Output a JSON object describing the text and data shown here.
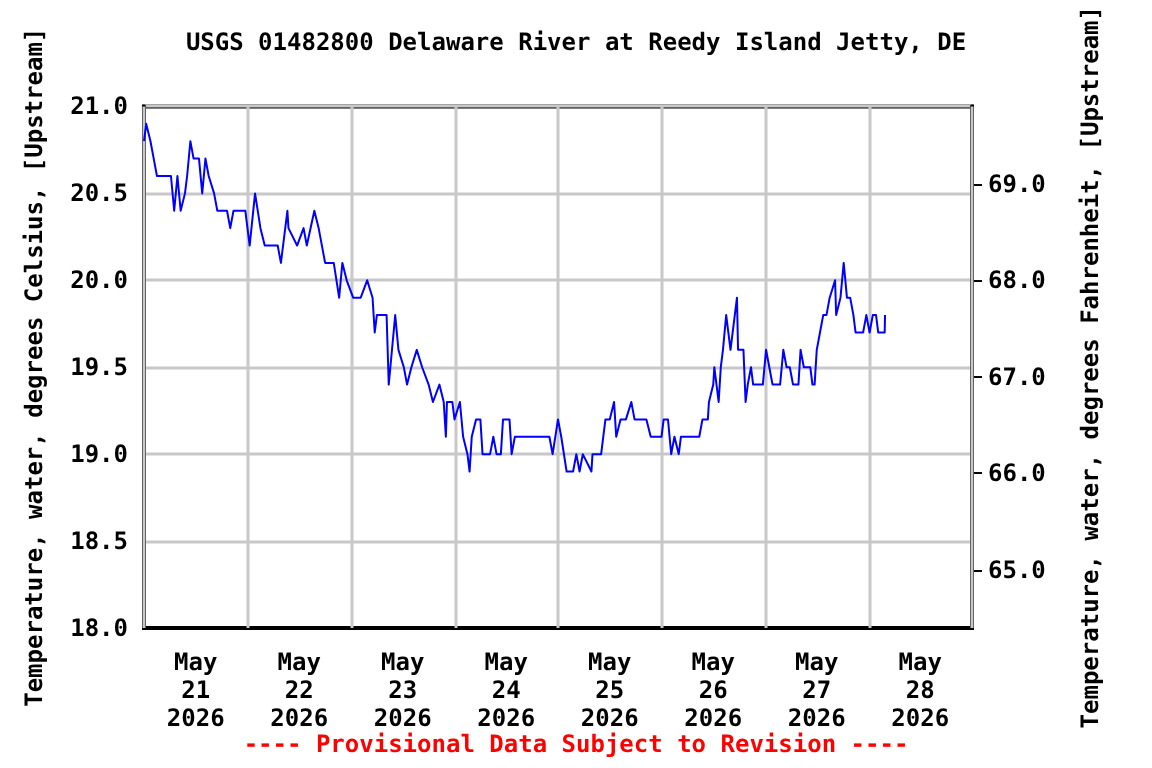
{
  "chart_data": {
    "type": "line",
    "title": "USGS 01482800 Delaware River at Reedy Island Jetty, DE",
    "ylabel": "Temperature, water, degrees Celsius, [Upstream]",
    "y2label": "Temperature, water, degrees Fahrenheit, [Upstream]",
    "annotations": [
      "---- Provisional Data Subject to Revision ----"
    ],
    "xlim": [
      "2026-05-21T00:00",
      "2026-05-29T00:00"
    ],
    "xticks": [
      {
        "value": "2026-05-21T00:00",
        "label": null
      },
      {
        "value": "2026-05-21T12:00",
        "label": "May\n21\n2026"
      },
      {
        "value": "2026-05-22T00:00",
        "label": null
      },
      {
        "value": "2026-05-22T12:00",
        "label": "May\n22\n2026"
      },
      {
        "value": "2026-05-23T00:00",
        "label": null
      },
      {
        "value": "2026-05-23T12:00",
        "label": "May\n23\n2026"
      },
      {
        "value": "2026-05-24T00:00",
        "label": null
      },
      {
        "value": "2026-05-24T12:00",
        "label": "May\n24\n2026"
      },
      {
        "value": "2026-05-25T00:00",
        "label": null
      },
      {
        "value": "2026-05-25T12:00",
        "label": "May\n25\n2026"
      },
      {
        "value": "2026-05-26T00:00",
        "label": null
      },
      {
        "value": "2026-05-26T12:00",
        "label": "May\n26\n2026"
      },
      {
        "value": "2026-05-27T00:00",
        "label": null
      },
      {
        "value": "2026-05-27T12:00",
        "label": "May\n27\n2026"
      },
      {
        "value": "2026-05-28T00:00",
        "label": null
      },
      {
        "value": "2026-05-28T12:00",
        "label": "May\n28\n2026"
      },
      {
        "value": "2026-05-29T00:00",
        "label": null
      }
    ],
    "ylim": [
      18,
      21
    ],
    "yticks": [
      {
        "value": 18,
        "label": "18.0"
      },
      {
        "value": 18.5,
        "label": "18.5"
      },
      {
        "value": 19,
        "label": "19.0"
      },
      {
        "value": 19.5,
        "label": "19.5"
      },
      {
        "value": 20,
        "label": "20.0"
      },
      {
        "value": 20.5,
        "label": "20.5"
      },
      {
        "value": 21,
        "label": "21.0"
      }
    ],
    "y2lim": [
      64.4,
      69.8
    ],
    "y2ticks": [
      {
        "value": 65,
        "label": "65.0"
      },
      {
        "value": 66,
        "label": "66.0"
      },
      {
        "value": 67,
        "label": "67.0"
      },
      {
        "value": 68,
        "label": "68.0"
      },
      {
        "value": 69,
        "label": "69.0"
      }
    ],
    "grid": true,
    "series": [
      {
        "color": "#0000ff",
        "x": [
          "2026-05-21T00:00",
          "2026-05-21T00:30",
          "2026-05-21T01:30",
          "2026-05-21T02:15",
          "2026-05-21T03:00",
          "2026-05-21T06:15",
          "2026-05-21T07:00",
          "2026-05-21T07:45",
          "2026-05-21T08:30",
          "2026-05-21T09:30",
          "2026-05-21T10:00",
          "2026-05-21T10:45",
          "2026-05-21T11:30",
          "2026-05-21T12:45",
          "2026-05-21T13:30",
          "2026-05-21T14:15",
          "2026-05-21T15:00",
          "2026-05-21T16:15",
          "2026-05-21T17:00",
          "2026-05-21T19:15",
          "2026-05-21T20:00",
          "2026-05-21T20:45",
          "2026-05-21T23:30",
          "2026-05-22T00:30",
          "2026-05-22T01:45",
          "2026-05-22T03:00",
          "2026-05-22T04:00",
          "2026-05-22T07:00",
          "2026-05-22T07:45",
          "2026-05-22T09:15",
          "2026-05-22T09:30",
          "2026-05-22T11:30",
          "2026-05-22T13:00",
          "2026-05-22T13:45",
          "2026-05-22T15:30",
          "2026-05-22T16:30",
          "2026-05-22T18:00",
          "2026-05-22T20:00",
          "2026-05-22T21:15",
          "2026-05-22T22:00",
          "2026-05-22T23:00",
          "2026-05-23T00:30",
          "2026-05-23T02:15",
          "2026-05-23T03:45",
          "2026-05-23T05:00",
          "2026-05-23T05:30",
          "2026-05-23T06:00",
          "2026-05-23T08:15",
          "2026-05-23T08:45",
          "2026-05-23T09:30",
          "2026-05-23T10:15",
          "2026-05-23T11:00",
          "2026-05-23T12:15",
          "2026-05-23T13:00",
          "2026-05-23T14:00",
          "2026-05-23T15:15",
          "2026-05-23T16:30",
          "2026-05-23T18:00",
          "2026-05-23T19:00",
          "2026-05-23T20:30",
          "2026-05-23T21:30",
          "2026-05-23T22:00",
          "2026-05-23T22:15",
          "2026-05-23T23:30",
          "2026-05-24T00:00",
          "2026-05-24T01:15",
          "2026-05-24T02:00",
          "2026-05-24T03:00",
          "2026-05-24T03:30",
          "2026-05-24T04:00",
          "2026-05-24T05:00",
          "2026-05-24T06:00",
          "2026-05-24T06:30",
          "2026-05-24T08:15",
          "2026-05-24T09:00",
          "2026-05-24T09:45",
          "2026-05-24T10:45",
          "2026-05-24T11:15",
          "2026-05-24T12:45",
          "2026-05-24T13:15",
          "2026-05-24T14:00",
          "2026-05-24T16:45",
          "2026-05-24T22:00",
          "2026-05-24T22:45",
          "2026-05-25T00:00",
          "2026-05-25T00:45",
          "2026-05-25T02:00",
          "2026-05-25T03:30",
          "2026-05-25T04:15",
          "2026-05-25T05:00",
          "2026-05-25T05:45",
          "2026-05-25T07:45",
          "2026-05-25T08:00",
          "2026-05-25T10:00",
          "2026-05-25T11:00",
          "2026-05-25T12:00",
          "2026-05-25T13:00",
          "2026-05-25T13:30",
          "2026-05-25T14:30",
          "2026-05-25T15:45",
          "2026-05-25T17:00",
          "2026-05-25T17:45",
          "2026-05-25T20:30",
          "2026-05-25T21:30",
          "2026-05-26T00:00",
          "2026-05-26T00:30",
          "2026-05-26T01:30",
          "2026-05-26T02:15",
          "2026-05-26T03:00",
          "2026-05-26T04:00",
          "2026-05-26T04:30",
          "2026-05-26T08:45",
          "2026-05-26T09:30",
          "2026-05-26T10:45",
          "2026-05-26T11:00",
          "2026-05-26T12:00",
          "2026-05-26T12:15",
          "2026-05-26T13:15",
          "2026-05-26T13:45",
          "2026-05-26T14:15",
          "2026-05-26T15:00",
          "2026-05-26T16:00",
          "2026-05-26T16:30",
          "2026-05-26T17:30",
          "2026-05-26T17:45",
          "2026-05-26T19:00",
          "2026-05-26T19:30",
          "2026-05-26T20:00",
          "2026-05-26T20:45",
          "2026-05-26T21:15",
          "2026-05-26T23:30",
          "2026-05-27T00:15",
          "2026-05-27T01:00",
          "2026-05-27T01:45",
          "2026-05-27T03:30",
          "2026-05-27T04:15",
          "2026-05-27T05:00",
          "2026-05-27T05:45",
          "2026-05-27T06:30",
          "2026-05-27T07:45",
          "2026-05-27T08:15",
          "2026-05-27T09:00",
          "2026-05-27T10:30",
          "2026-05-27T11:00",
          "2026-05-27T11:30",
          "2026-05-27T12:00",
          "2026-05-27T12:45",
          "2026-05-27T13:30",
          "2026-05-27T14:15",
          "2026-05-27T15:00",
          "2026-05-27T16:15",
          "2026-05-27T16:30",
          "2026-05-27T17:30",
          "2026-05-27T18:15",
          "2026-05-27T19:00",
          "2026-05-27T19:45",
          "2026-05-27T20:30",
          "2026-05-27T21:00",
          "2026-05-27T22:45",
          "2026-05-27T23:30",
          "2026-05-28T00:15",
          "2026-05-28T01:00",
          "2026-05-28T01:45",
          "2026-05-28T02:15",
          "2026-05-28T03:45",
          "2026-05-28T03:50"
        ],
        "values": [
          20.8,
          20.9,
          20.8,
          20.7,
          20.6,
          20.6,
          20.4,
          20.6,
          20.4,
          20.5,
          20.6,
          20.8,
          20.7,
          20.7,
          20.5,
          20.7,
          20.6,
          20.5,
          20.4,
          20.4,
          20.3,
          20.4,
          20.4,
          20.2,
          20.5,
          20.3,
          20.2,
          20.2,
          20.1,
          20.4,
          20.3,
          20.2,
          20.3,
          20.2,
          20.4,
          20.3,
          20.1,
          20.1,
          19.9,
          20.1,
          20.0,
          19.9,
          19.9,
          20.0,
          19.9,
          19.7,
          19.8,
          19.8,
          19.4,
          19.6,
          19.8,
          19.6,
          19.5,
          19.4,
          19.5,
          19.6,
          19.5,
          19.4,
          19.3,
          19.4,
          19.3,
          19.1,
          19.3,
          19.3,
          19.2,
          19.3,
          19.1,
          19.0,
          18.9,
          19.1,
          19.2,
          19.2,
          19.0,
          19.0,
          19.1,
          19.0,
          19.0,
          19.2,
          19.2,
          19.0,
          19.1,
          19.1,
          19.1,
          19.0,
          19.2,
          19.1,
          18.9,
          18.9,
          19.0,
          18.9,
          19.0,
          18.9,
          19.0,
          19.0,
          19.2,
          19.2,
          19.3,
          19.1,
          19.2,
          19.2,
          19.3,
          19.2,
          19.2,
          19.1,
          19.1,
          19.2,
          19.2,
          19.0,
          19.1,
          19.0,
          19.1,
          19.1,
          19.2,
          19.2,
          19.3,
          19.4,
          19.5,
          19.3,
          19.5,
          19.6,
          19.8,
          19.6,
          19.7,
          19.9,
          19.6,
          19.6,
          19.3,
          19.4,
          19.5,
          19.4,
          19.4,
          19.6,
          19.5,
          19.4,
          19.4,
          19.6,
          19.5,
          19.5,
          19.4,
          19.4,
          19.6,
          19.5,
          19.5,
          19.4,
          19.4,
          19.6,
          19.7,
          19.8,
          19.8,
          19.9,
          20.0,
          19.8,
          19.9,
          20.1,
          19.9,
          19.9,
          19.8,
          19.7,
          19.7,
          19.8,
          19.7,
          19.8,
          19.8,
          19.7,
          19.7,
          19.8
        ]
      }
    ]
  }
}
